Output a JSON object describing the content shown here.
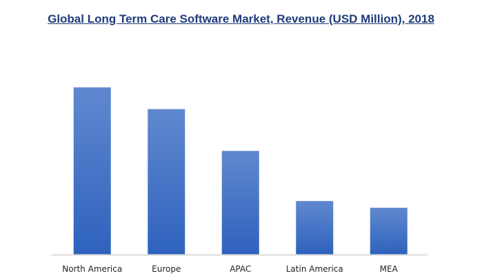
{
  "chart_data": {
    "type": "bar",
    "title": "Global Long Term Care Software Market, Revenue (USD Million), 2018",
    "categories": [
      "North America",
      "Europe",
      "APAC",
      "Latin America",
      "MEA"
    ],
    "values": [
      100,
      87,
      62,
      32,
      28
    ],
    "value_scale": "relative (no y-axis shown)",
    "xlabel": "",
    "ylabel": "",
    "ylim": [
      0,
      100
    ],
    "grid": false,
    "legend": "none",
    "colors": {
      "bar_top": "#6088cf",
      "bar_bottom": "#2e62bd",
      "title": "#1f3b7a",
      "axis": "#d9d9d9"
    }
  }
}
